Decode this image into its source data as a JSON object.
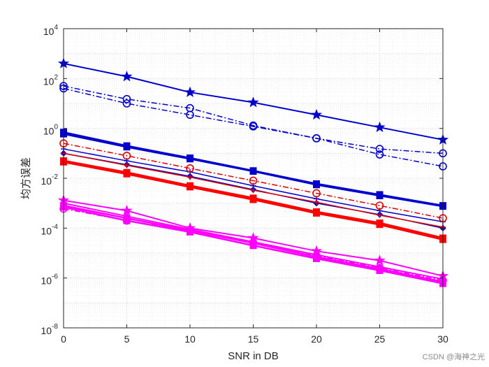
{
  "chart_data": {
    "type": "line",
    "title": "",
    "xlabel": "SNR in DB",
    "ylabel": "均方误差",
    "yscale": "log",
    "x": [
      0,
      5,
      10,
      15,
      20,
      25,
      30
    ],
    "xlim": [
      0,
      30
    ],
    "ylim": [
      1e-08,
      10000.0
    ],
    "xticks": [
      "0",
      "5",
      "10",
      "15",
      "20",
      "25",
      "30"
    ],
    "yticks": [
      {
        "base": "10",
        "exp": "-8",
        "value": 1e-08
      },
      {
        "base": "10",
        "exp": "-6",
        "value": 1e-06
      },
      {
        "base": "10",
        "exp": "-4",
        "value": 0.0001
      },
      {
        "base": "10",
        "exp": "-2",
        "value": 0.01
      },
      {
        "base": "10",
        "exp": "0",
        "value": 1
      },
      {
        "base": "10",
        "exp": "2",
        "value": 100
      },
      {
        "base": "10",
        "exp": "4",
        "value": 10000
      }
    ],
    "grid": true,
    "series": [
      {
        "name": "blue-star-solid",
        "color": "#0000cc",
        "marker": "star",
        "dash": "solid",
        "width": 2,
        "values": [
          400,
          120,
          28,
          11,
          3.5,
          1.1,
          0.35
        ]
      },
      {
        "name": "blue-circle-dashdot-1",
        "color": "#0000cc",
        "marker": "circle",
        "dash": "dashdot",
        "width": 1.5,
        "values": [
          50,
          15,
          6.5,
          1.3,
          0.4,
          0.15,
          0.1
        ]
      },
      {
        "name": "blue-circle-dashdot-2",
        "color": "#0000cc",
        "marker": "circle",
        "dash": "dashdot",
        "width": 1.5,
        "values": [
          40,
          10,
          3.5,
          1.2,
          0.4,
          0.09,
          0.03
        ]
      },
      {
        "name": "blue-square-solid-1",
        "color": "#0000cc",
        "marker": "square",
        "dash": "solid",
        "width": 2.5,
        "values": [
          0.7,
          0.2,
          0.065,
          0.02,
          0.006,
          0.0022,
          0.0008
        ]
      },
      {
        "name": "blue-square-solid-2",
        "color": "#0000cc",
        "marker": "square",
        "dash": "solid",
        "width": 2.5,
        "values": [
          0.6,
          0.18,
          0.06,
          0.019,
          0.0055,
          0.002,
          0.00075
        ]
      },
      {
        "name": "blue-solid-thin-1",
        "color": "#0000cc",
        "marker": "plus",
        "dash": "solid",
        "width": 1.5,
        "values": [
          0.15,
          0.05,
          0.018,
          0.005,
          0.0015,
          0.0005,
          0.00018
        ]
      },
      {
        "name": "blue-solid-thin-2",
        "color": "#0000cc",
        "marker": "diamond",
        "dash": "solid",
        "width": 1.5,
        "values": [
          0.1,
          0.035,
          0.012,
          0.0035,
          0.001,
          0.00035,
          0.0001
        ]
      },
      {
        "name": "red-circle-dashdot",
        "color": "#e00000",
        "marker": "circle",
        "dash": "dashdot",
        "width": 1.5,
        "values": [
          0.25,
          0.08,
          0.025,
          0.008,
          0.0025,
          0.0008,
          0.00025
        ]
      },
      {
        "name": "red-solid-thin",
        "color": "#e00000",
        "marker": "plus",
        "dash": "solid",
        "width": 1.5,
        "values": [
          0.1,
          0.033,
          0.011,
          0.0033,
          0.0011,
          0.00033,
          0.00011
        ]
      },
      {
        "name": "red-square-solid-1",
        "color": "#ff0000",
        "marker": "square",
        "dash": "solid",
        "width": 3,
        "values": [
          0.05,
          0.017,
          0.005,
          0.0016,
          0.00045,
          0.00016,
          4e-05
        ]
      },
      {
        "name": "red-square-solid-2",
        "color": "#ff0000",
        "marker": "square",
        "dash": "solid",
        "width": 3,
        "values": [
          0.045,
          0.015,
          0.0045,
          0.0014,
          0.0004,
          0.00014,
          3.5e-05
        ]
      },
      {
        "name": "magenta-star-solid",
        "color": "#ff00ff",
        "marker": "star",
        "dash": "solid",
        "width": 2,
        "values": [
          0.0013,
          0.0005,
          0.0001,
          4e-05,
          1.2e-05,
          5e-06,
          1.2e-06
        ]
      },
      {
        "name": "magenta-solid-1",
        "color": "#ff00ff",
        "marker": "diamond",
        "dash": "solid",
        "width": 2,
        "values": [
          0.001,
          0.0003,
          9e-05,
          2.8e-05,
          8.5e-06,
          2.8e-06,
          9e-07
        ]
      },
      {
        "name": "magenta-square-solid-1",
        "color": "#ff00ff",
        "marker": "square",
        "dash": "solid",
        "width": 2.5,
        "values": [
          0.0008,
          0.00025,
          8e-05,
          2.5e-05,
          7e-06,
          2.3e-06,
          7e-07
        ]
      },
      {
        "name": "magenta-square-solid-2",
        "color": "#ff00ff",
        "marker": "square",
        "dash": "solid",
        "width": 2.5,
        "values": [
          0.0007,
          0.0002,
          7e-05,
          2e-05,
          6e-06,
          2e-06,
          6e-07
        ]
      },
      {
        "name": "magenta-circle-dashdot",
        "color": "#ff00ff",
        "marker": "circle",
        "dash": "dashdot",
        "width": 1.5,
        "values": [
          0.0006,
          0.0002,
          8e-05,
          2.5e-05,
          8e-06,
          2.5e-06,
          8e-07
        ]
      }
    ]
  },
  "watermark": "CSDN @海神之光"
}
